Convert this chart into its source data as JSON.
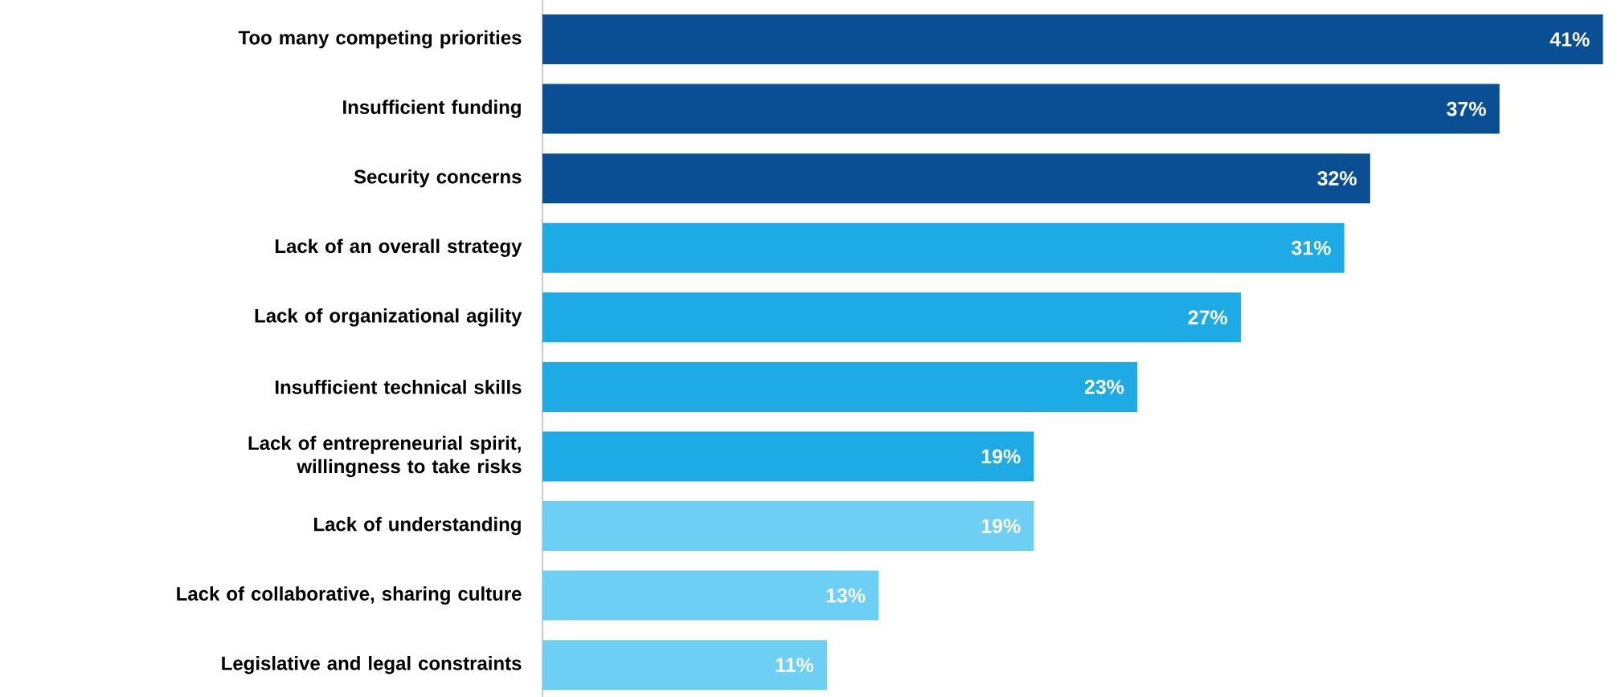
{
  "chart_data": {
    "type": "bar",
    "orientation": "horizontal",
    "categories": [
      "Too many competing priorities",
      "Insufficient funding",
      "Security concerns",
      "Lack of an overall strategy",
      "Lack of organizational agility",
      "Insufficient technical skills",
      "Lack of entrepreneurial spirit, willingness to take risks",
      "Lack of understanding",
      "Lack of collaborative, sharing culture",
      "Legislative and legal constraints"
    ],
    "values": [
      41,
      37,
      32,
      31,
      27,
      23,
      19,
      19,
      13,
      11
    ],
    "colors": [
      "#0a4f94",
      "#0a4f94",
      "#0a4f94",
      "#1eabe5",
      "#1eabe5",
      "#1eabe5",
      "#1eabe5",
      "#6ccff3",
      "#6ccff3",
      "#6ccff3"
    ],
    "value_labels": [
      "41%",
      "37%",
      "32%",
      "31%",
      "27%",
      "23%",
      "19%",
      "19%",
      "13%",
      "11%"
    ]
  }
}
